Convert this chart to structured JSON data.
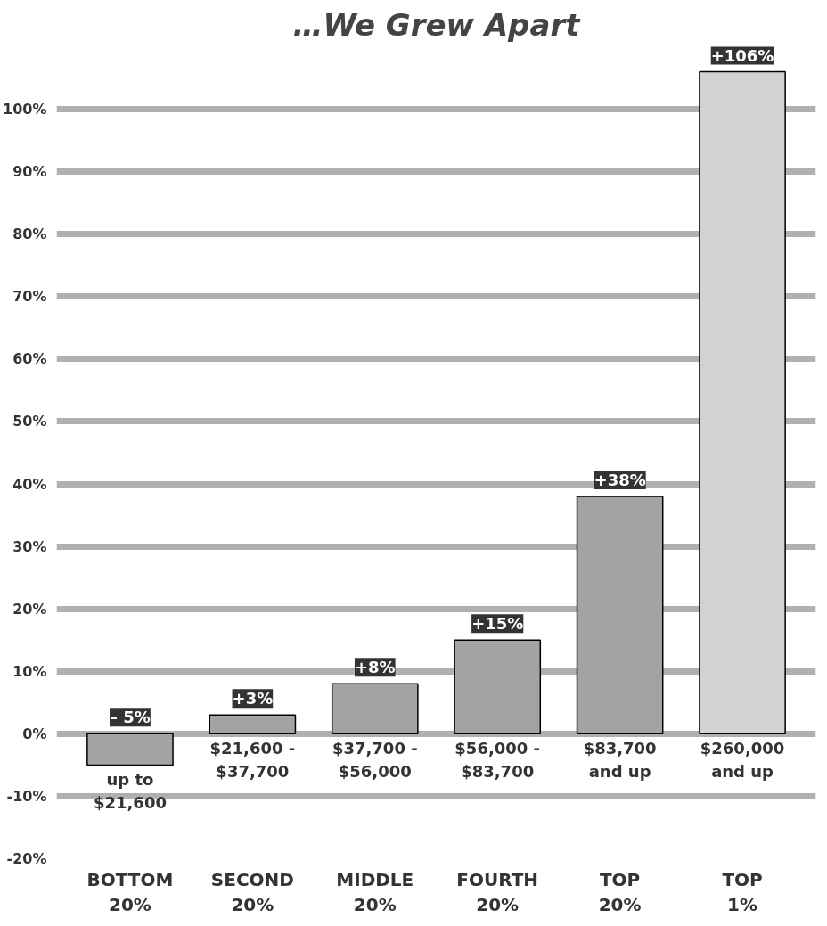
{
  "chart_data": {
    "type": "bar",
    "title": "…We Grew Apart",
    "categories": [
      "BOTTOM\n20%",
      "SECOND\n20%",
      "MIDDLE\n20%",
      "FOURTH\n20%",
      "TOP\n20%",
      "TOP\n1%"
    ],
    "values": [
      -5,
      3,
      8,
      15,
      38,
      106
    ],
    "colors": [
      "#a3a3a3",
      "#a3a3a3",
      "#a3a3a3",
      "#a3a3a3",
      "#a3a3a3",
      "#d2d2d2"
    ],
    "value_labels": [
      "– 5%",
      "+3%",
      "+8%",
      "+15%",
      "+38%",
      "+106%"
    ],
    "annotations": [
      "up to\n$21,600",
      "$21,600 -\n$37,700",
      "$37,700 -\n$56,000",
      "$56,000 -\n$83,700",
      "$83,700\nand up",
      "$260,000\nand up"
    ],
    "ylim": [
      -20,
      110
    ],
    "yticks": [
      {
        "value": -20,
        "label": "-20%"
      },
      {
        "value": -10,
        "label": "-10%"
      },
      {
        "value": 0,
        "label": "0%"
      },
      {
        "value": 10,
        "label": "10%"
      },
      {
        "value": 20,
        "label": "20%"
      },
      {
        "value": 30,
        "label": "30%"
      },
      {
        "value": 40,
        "label": "40%"
      },
      {
        "value": 50,
        "label": "50%"
      },
      {
        "value": 60,
        "label": "60%"
      },
      {
        "value": 70,
        "label": "70%"
      },
      {
        "value": 80,
        "label": "80%"
      },
      {
        "value": 90,
        "label": "90%"
      },
      {
        "value": 100,
        "label": "100%"
      }
    ],
    "grid": "y"
  }
}
